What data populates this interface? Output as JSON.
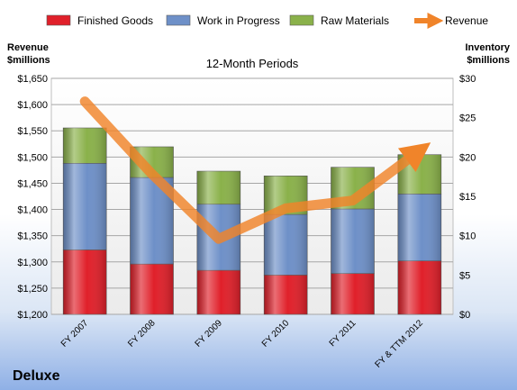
{
  "chart_data": {
    "type": "bar",
    "title": "12-Month Periods",
    "company": "Deluxe",
    "left_axis_label": [
      "Revenue",
      "$millions"
    ],
    "right_axis_label": [
      "Inventory",
      "$millions"
    ],
    "categories": [
      "FY 2007",
      "FY 2008",
      "FY 2009",
      "FY 2010",
      "FY 2011",
      "FY & TTM 2012"
    ],
    "stacked": true,
    "series": [
      {
        "name": "Finished Goods",
        "axis": "right",
        "color": "#e0202a",
        "values": [
          8.2,
          6.4,
          5.6,
          5.0,
          5.2,
          6.8
        ]
      },
      {
        "name": "Work in Progress",
        "axis": "right",
        "color": "#6e90c8",
        "values": [
          11.0,
          11.0,
          8.4,
          7.7,
          8.2,
          8.5
        ]
      },
      {
        "name": "Raw Materials",
        "axis": "right",
        "color": "#8ab14a",
        "values": [
          4.5,
          3.9,
          4.2,
          4.9,
          5.3,
          5.0
        ]
      },
      {
        "name": "Revenue",
        "axis": "left",
        "type": "line",
        "color": "#f0842a",
        "values": [
          1606,
          1468,
          1344,
          1402,
          1417,
          1512
        ]
      }
    ],
    "left_axis": {
      "min": 1200,
      "max": 1650,
      "step": 50,
      "ticks": [
        "$1,200",
        "$1,250",
        "$1,300",
        "$1,350",
        "$1,400",
        "$1,450",
        "$1,500",
        "$1,550",
        "$1,600",
        "$1,650"
      ]
    },
    "right_axis": {
      "min": 0,
      "max": 30,
      "step": 5,
      "ticks": [
        "$0",
        "$5",
        "$10",
        "$15",
        "$20",
        "$25",
        "$30"
      ]
    },
    "grid": true,
    "legend_position": "top"
  }
}
